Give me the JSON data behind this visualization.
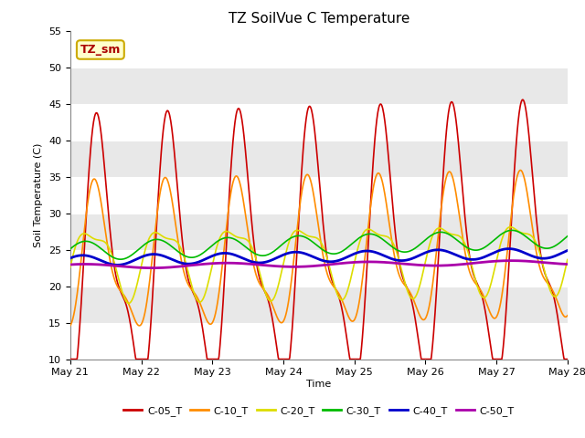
{
  "title": "TZ SoilVue C Temperature",
  "ylabel": "Soil Temperature (C)",
  "xlabel": "Time",
  "annotation_text": "TZ_sm",
  "annotation_bg": "#FFFFCC",
  "annotation_border": "#CCAA00",
  "annotation_text_color": "#AA0000",
  "ylim": [
    10,
    55
  ],
  "yticks": [
    10,
    15,
    20,
    25,
    30,
    35,
    40,
    45,
    50,
    55
  ],
  "xtick_labels": [
    "May 21",
    "May 22",
    "May 23",
    "May 24",
    "May 25",
    "May 26",
    "May 27",
    "May 28"
  ],
  "plot_bg": "#E8E8E8",
  "fig_bg": "#FFFFFF",
  "grid_color": "#FFFFFF",
  "series": {
    "C-05_T": {
      "color": "#CC0000",
      "lw": 1.2
    },
    "C-10_T": {
      "color": "#FF8C00",
      "lw": 1.2
    },
    "C-20_T": {
      "color": "#DDDD00",
      "lw": 1.2
    },
    "C-30_T": {
      "color": "#00BB00",
      "lw": 1.2
    },
    "C-40_T": {
      "color": "#0000CC",
      "lw": 2.0
    },
    "C-50_T": {
      "color": "#AA00AA",
      "lw": 2.0
    }
  },
  "n_days": 7,
  "n_points": 1000
}
